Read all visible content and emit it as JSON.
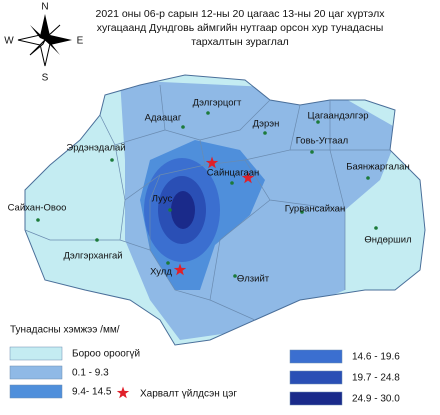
{
  "title": [
    "2021 оны 06-р сарын 12-ны 20 цагаас 13-ны 20 цаг хүртэлх",
    "хугацаанд Дундговь аймгийн нутгаар орсон хур тунадасны",
    "тархалтын зураглал"
  ],
  "compass": {
    "north": "N",
    "east": "E",
    "south": "S",
    "west": "W"
  },
  "places": [
    "Дэлгэрцогт",
    "Адаацаг",
    "Дэрэн",
    "Цагаандэлгэр",
    "Эрдэнэдалай",
    "Говь-Угтаал",
    "Сайнцагаан",
    "Баянжаргалан",
    "Сайхан-Овоо",
    "Луус",
    "Гурвансайхан",
    "Өндөршил",
    "Дэлгэрхангай",
    "Хулд",
    "Өлзийт"
  ],
  "legend": {
    "title": "Тунадасны хэмжээ /мм/",
    "classes": [
      {
        "label": "Бороо ороогүй",
        "color": "#c4ecf2"
      },
      {
        "label": "0.1 - 9.3",
        "color": "#8fb9e6"
      },
      {
        "label": "9.4- 14.5",
        "color": "#4f8fdb"
      },
      {
        "label": "14.6 - 19.6",
        "color": "#3b6fd0"
      },
      {
        "label": "19.7 - 24.8",
        "color": "#2a4fb5"
      },
      {
        "label": "24.9 - 30.0",
        "color": "#1a2a8a"
      }
    ],
    "lightning": "Харвалт үйлдсэн цэг",
    "lightning_color": "#e0202a"
  }
}
